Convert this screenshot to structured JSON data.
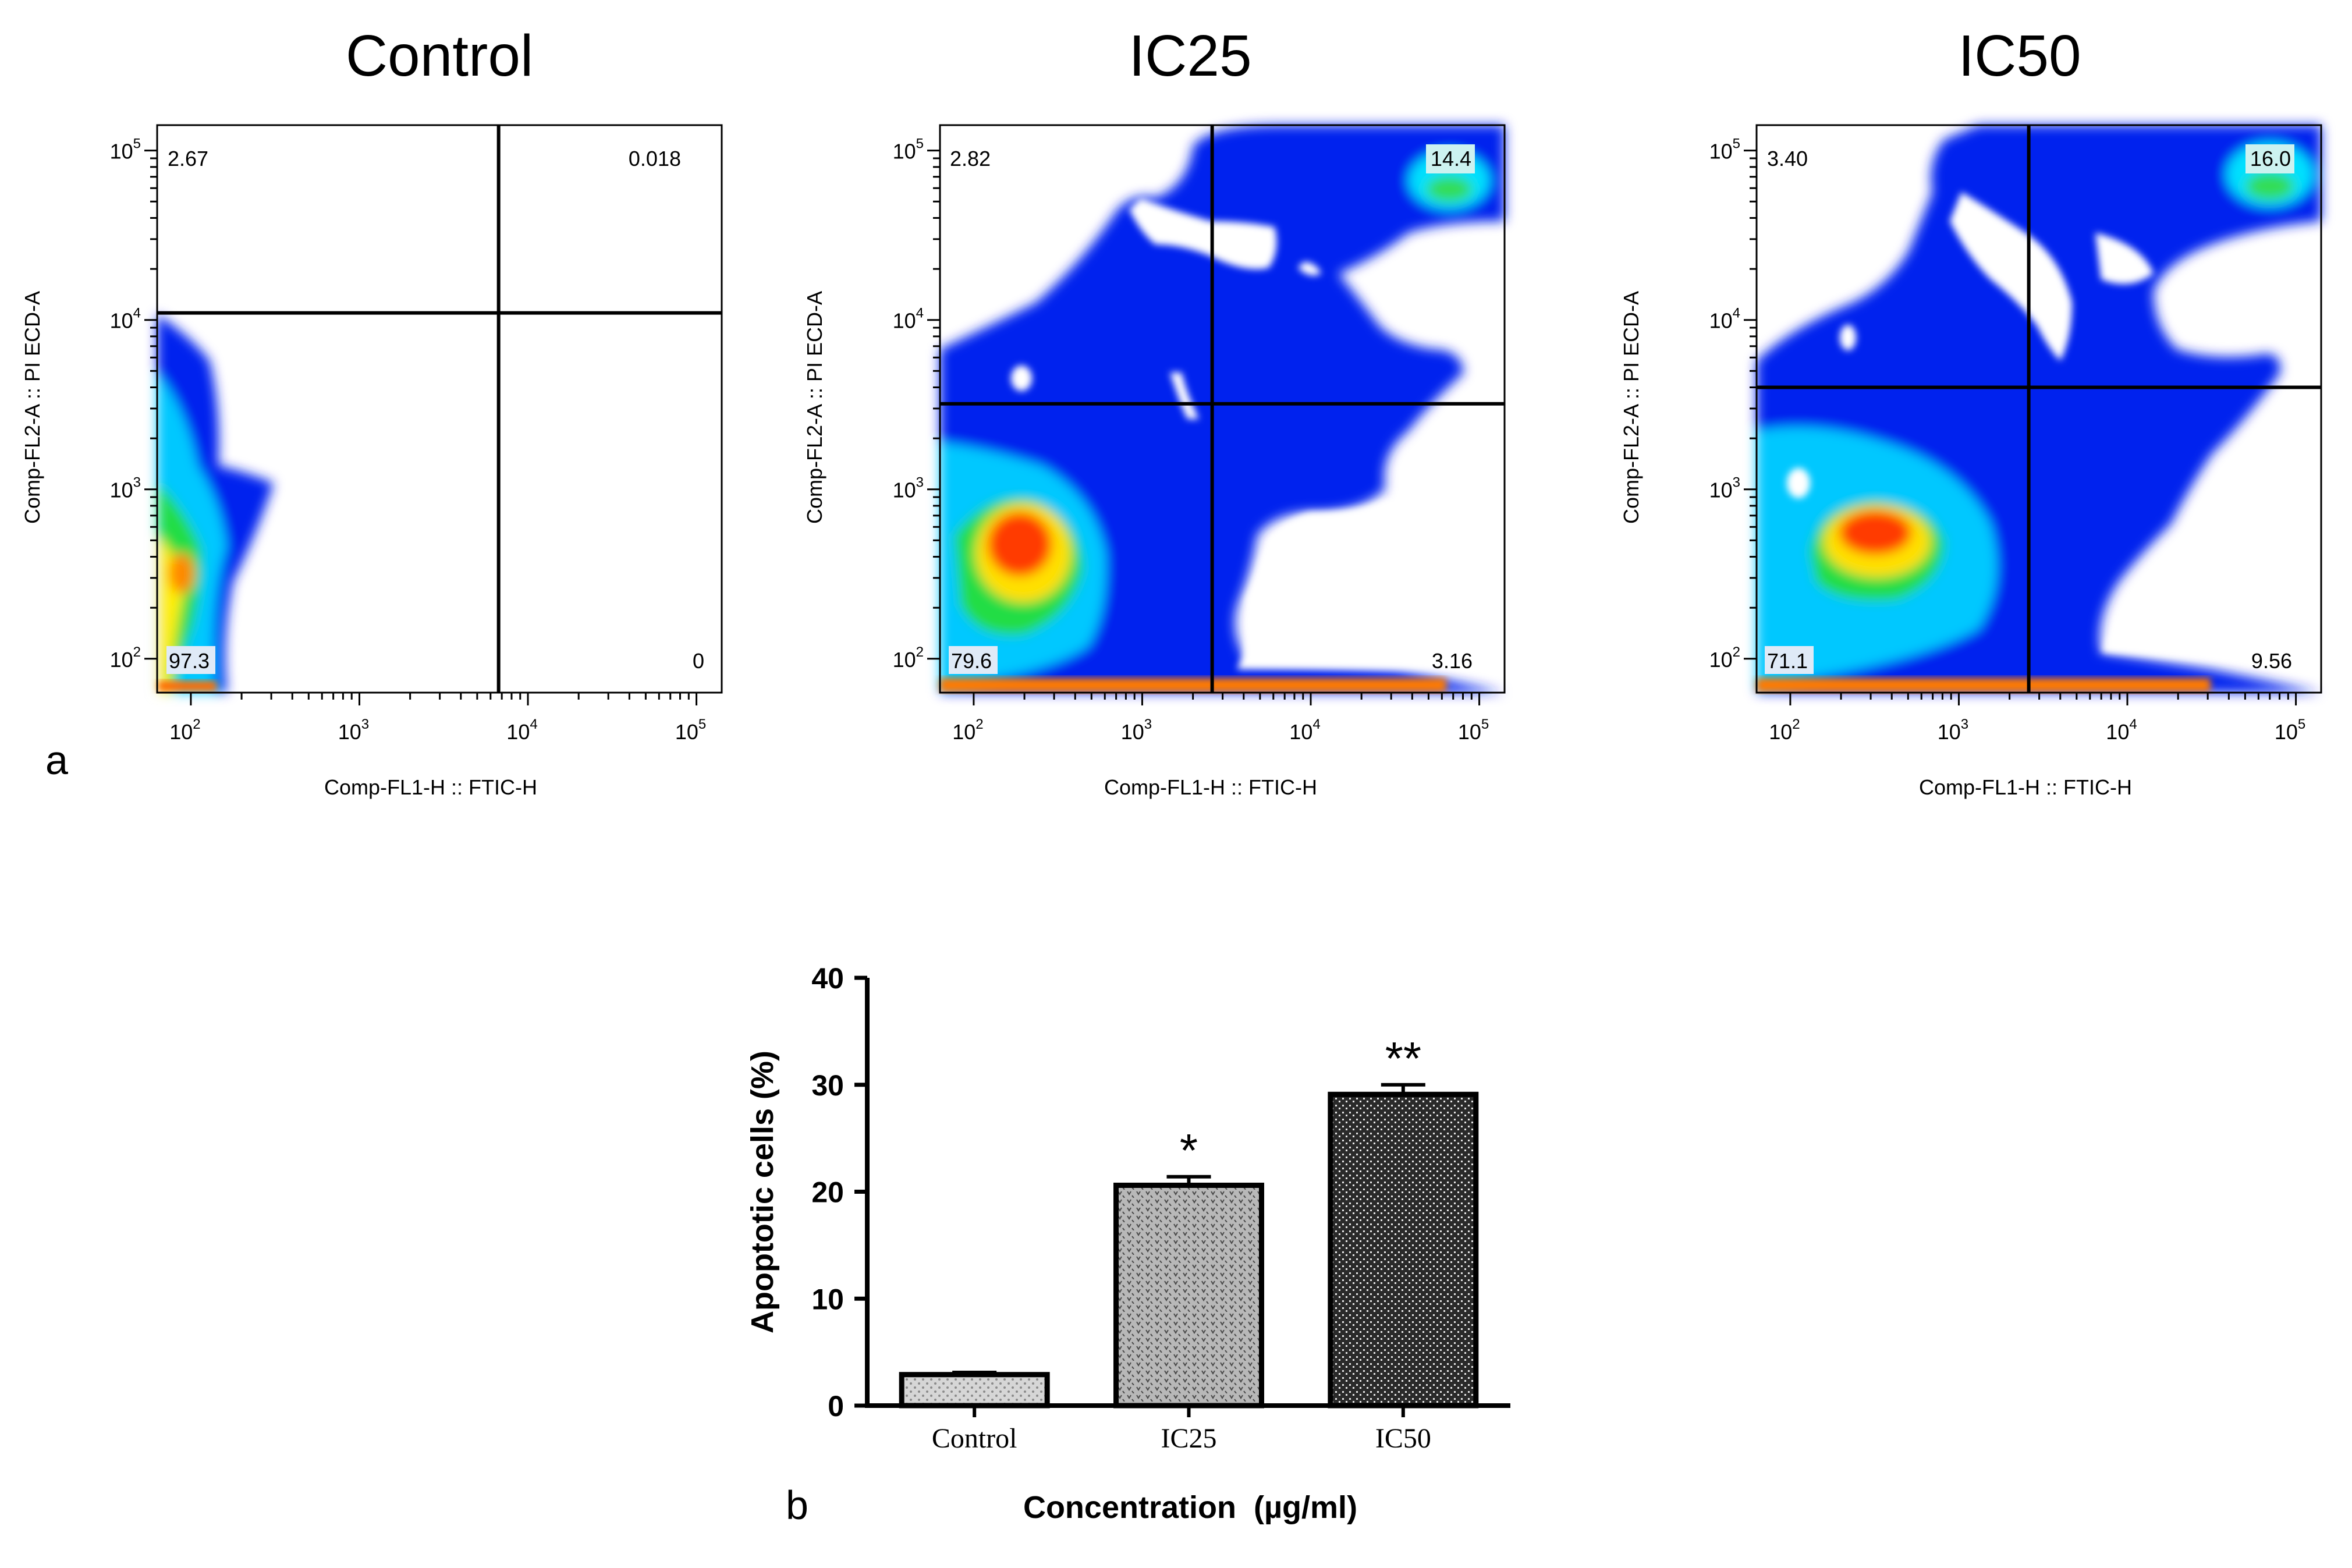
{
  "panel_labels": {
    "a": "a",
    "b": "b"
  },
  "chart_data": [
    {
      "type": "density",
      "title": "Control",
      "xlabel": "Comp-FL1-H :: FTIC-H",
      "ylabel": "Comp-FL2-A :: PI ECD-A",
      "x_ticks": [
        {
          "base": "10",
          "exp": "2"
        },
        {
          "base": "10",
          "exp": "3"
        },
        {
          "base": "10",
          "exp": "4"
        },
        {
          "base": "10",
          "exp": "5"
        }
      ],
      "y_ticks": [
        {
          "base": "10",
          "exp": "2"
        },
        {
          "base": "10",
          "exp": "3"
        },
        {
          "base": "10",
          "exp": "4"
        },
        {
          "base": "10",
          "exp": "5"
        }
      ],
      "quadrant_gate": {
        "x": 6700,
        "y": 11000
      },
      "quadrants": {
        "upper_left": "2.67",
        "upper_right": "0.018",
        "lower_left": "97.3",
        "lower_right": "0"
      }
    },
    {
      "type": "density",
      "title": "IC25",
      "xlabel": "Comp-FL1-H :: FTIC-H",
      "ylabel": "Comp-FL2-A :: PI ECD-A",
      "x_ticks": [
        {
          "base": "10",
          "exp": "2"
        },
        {
          "base": "10",
          "exp": "3"
        },
        {
          "base": "10",
          "exp": "4"
        },
        {
          "base": "10",
          "exp": "5"
        }
      ],
      "y_ticks": [
        {
          "base": "10",
          "exp": "2"
        },
        {
          "base": "10",
          "exp": "3"
        },
        {
          "base": "10",
          "exp": "4"
        },
        {
          "base": "10",
          "exp": "5"
        }
      ],
      "quadrant_gate": {
        "x": 2600,
        "y": 3200
      },
      "quadrants": {
        "upper_left": "2.82",
        "upper_right": "14.4",
        "lower_left": "79.6",
        "lower_right": "3.16"
      }
    },
    {
      "type": "density",
      "title": "IC50",
      "xlabel": "Comp-FL1-H :: FTIC-H",
      "ylabel": "Comp-FL2-A :: PI ECD-A",
      "x_ticks": [
        {
          "base": "10",
          "exp": "2"
        },
        {
          "base": "10",
          "exp": "3"
        },
        {
          "base": "10",
          "exp": "4"
        },
        {
          "base": "10",
          "exp": "5"
        }
      ],
      "y_ticks": [
        {
          "base": "10",
          "exp": "2"
        },
        {
          "base": "10",
          "exp": "3"
        },
        {
          "base": "10",
          "exp": "4"
        },
        {
          "base": "10",
          "exp": "5"
        }
      ],
      "quadrant_gate": {
        "x": 2600,
        "y": 4000
      },
      "quadrants": {
        "upper_left": "3.40",
        "upper_right": "16.0",
        "lower_left": "71.1",
        "lower_right": "9.56"
      }
    },
    {
      "type": "bar",
      "categories": [
        "Control",
        "IC25",
        "IC50"
      ],
      "values": [
        2.9,
        20.6,
        29.1
      ],
      "errors": [
        0.2,
        0.8,
        0.9
      ],
      "significance": [
        "",
        "*",
        "**"
      ],
      "xlabel": "Concentration  (µg/ml)",
      "ylabel": "Apoptotic cells (%)",
      "ylim": [
        0,
        40
      ],
      "yticks": [
        "0",
        "10",
        "20",
        "30",
        "40"
      ]
    }
  ]
}
